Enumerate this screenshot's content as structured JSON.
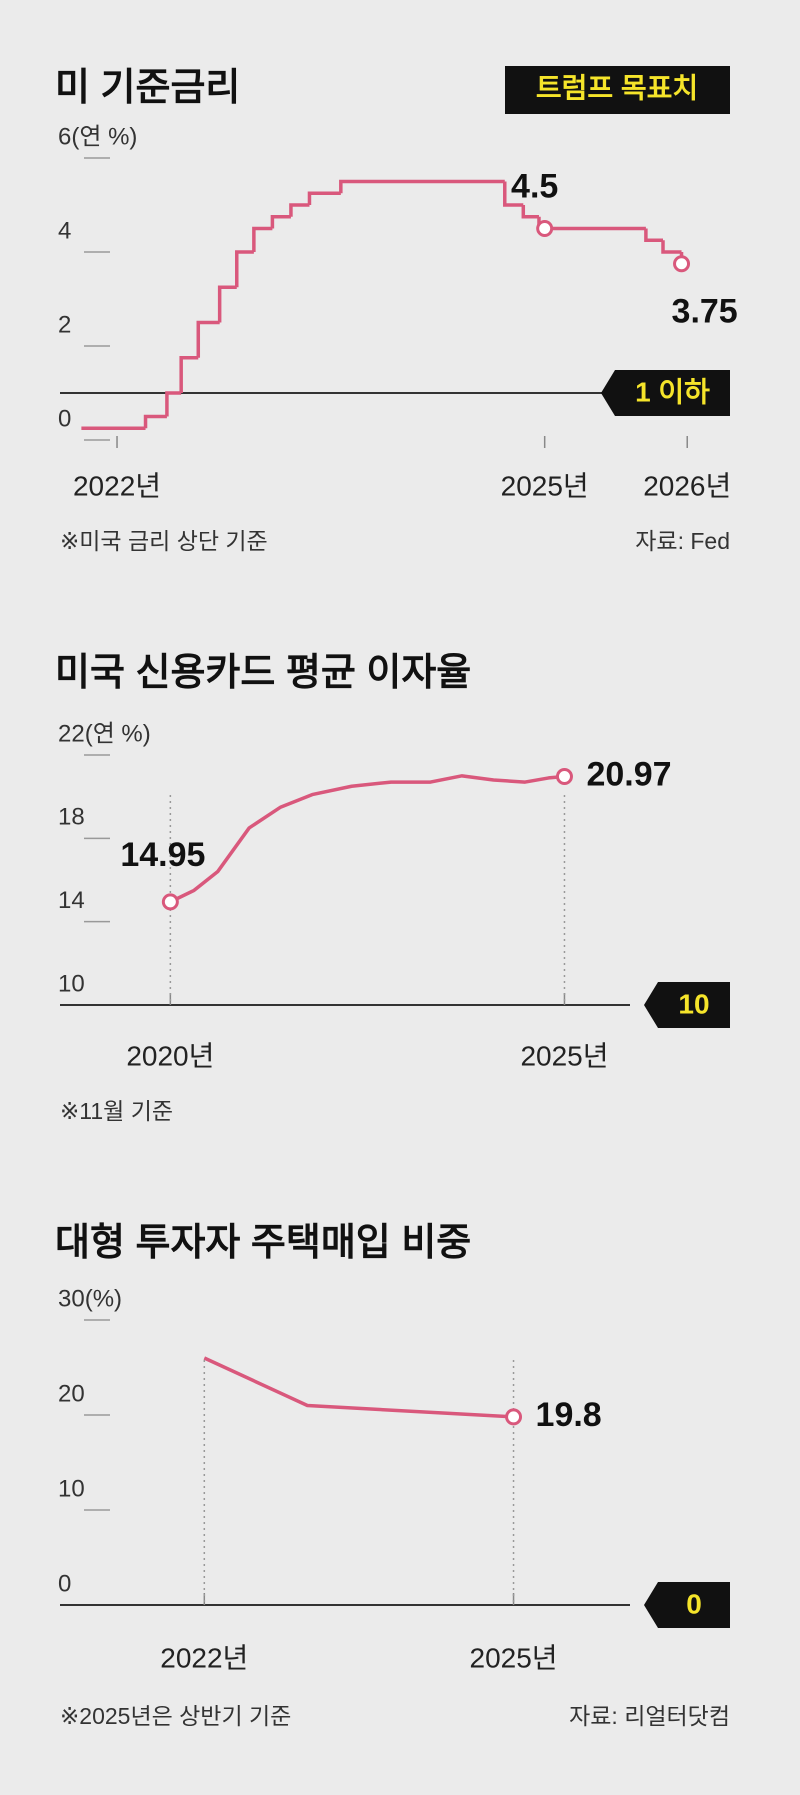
{
  "chart_data": [
    {
      "type": "step",
      "title": "미 기준금리",
      "target_legend": "트럼프 목표치",
      "x": [
        2021.75,
        2022.2,
        2022.35,
        2022.45,
        2022.57,
        2022.72,
        2022.84,
        2022.96,
        2023.09,
        2023.22,
        2023.35,
        2023.57,
        2024.72,
        2024.85,
        2024.96,
        2025.71,
        2025.83,
        2025.96
      ],
      "series": [
        {
          "name": "기준금리",
          "color": "#d9587c",
          "values": [
            0.25,
            0.5,
            1.0,
            1.75,
            2.5,
            3.25,
            4.0,
            4.5,
            4.75,
            5.0,
            5.25,
            5.5,
            5.0,
            4.75,
            4.5,
            4.25,
            4.0,
            3.75
          ]
        }
      ],
      "annotations": [
        {
          "text": "4.5",
          "x": 2025.0,
          "y": 4.5
        },
        {
          "text": "3.75",
          "x": 2025.96,
          "y": 3.75
        }
      ],
      "target": {
        "value": 1,
        "label": "1 이하"
      },
      "xlim": [
        2021.6,
        2026.3
      ],
      "xticks": [
        {
          "value": 2022,
          "label": "2022년"
        },
        {
          "value": 2025,
          "label": "2025년"
        },
        {
          "value": 2026,
          "label": "2026년"
        }
      ],
      "ylim": [
        0,
        6
      ],
      "yticks": [
        0,
        2,
        4,
        {
          "value": 6,
          "label": "6(연 %)"
        }
      ],
      "note": "※미국 금리 상단 기준",
      "source": "자료: Fed"
    },
    {
      "type": "line",
      "title": "미국 신용카드 평균 이자율",
      "x": [
        2020.0,
        2020.3,
        2020.6,
        2021.0,
        2021.4,
        2021.8,
        2022.3,
        2022.8,
        2023.3,
        2023.7,
        2024.1,
        2024.5,
        2024.8,
        2025.0
      ],
      "series": [
        {
          "name": "평균 이자율",
          "color": "#d9587c",
          "values": [
            14.95,
            15.5,
            16.4,
            18.5,
            19.5,
            20.1,
            20.5,
            20.7,
            20.7,
            21.0,
            20.8,
            20.7,
            20.9,
            20.97
          ]
        }
      ],
      "annotations": [
        {
          "text": "14.95",
          "x": 2020.0,
          "y": 14.95
        },
        {
          "text": "20.97",
          "x": 2025.0,
          "y": 20.97
        }
      ],
      "target": {
        "value": 10
      },
      "xlim": [
        2018.6,
        2027.1
      ],
      "xticks": [
        {
          "value": 2020,
          "label": "2020년"
        },
        {
          "value": 2025,
          "label": "2025년"
        }
      ],
      "ylim": [
        10,
        22
      ],
      "yticks": [
        10,
        14,
        18,
        {
          "value": 22,
          "label": "22(연 %)"
        }
      ],
      "note": "※11월 기준"
    },
    {
      "type": "line",
      "title": "대형 투자자 주택매입 비중",
      "x": [
        2022.0,
        2023.0,
        2025.0
      ],
      "series": [
        {
          "name": "주택매입 비중",
          "color": "#d9587c",
          "values": [
            26,
            21,
            19.8
          ]
        }
      ],
      "annotations": [
        {
          "text": "19.8",
          "x": 2025.0,
          "y": 19.8
        }
      ],
      "target": {
        "value": 0
      },
      "xlim": [
        2020.6,
        2027.1
      ],
      "xticks": [
        {
          "value": 2022,
          "label": "2022년"
        },
        {
          "value": 2025,
          "label": "2025년"
        }
      ],
      "ylim": [
        0,
        30
      ],
      "yticks": [
        0,
        10,
        20,
        {
          "value": 30,
          "label": "30(%)"
        }
      ],
      "note": "※2025년은 상반기 기준",
      "source": "자료: 리얼터닷컴"
    }
  ]
}
